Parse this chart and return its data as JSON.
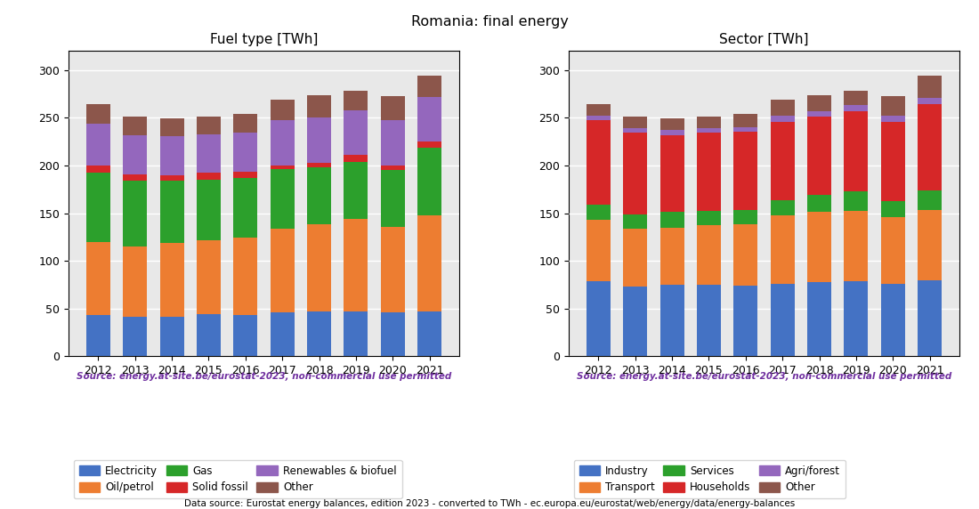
{
  "years": [
    2012,
    2013,
    2014,
    2015,
    2016,
    2017,
    2018,
    2019,
    2020,
    2021
  ],
  "title": "Romania: final energy",
  "source_text": "Source: energy.at-site.be/eurostat-2023, non-commercial use permitted",
  "footer_text": "Data source: Eurostat energy balances, edition 2023 - converted to TWh - ec.europa.eu/eurostat/web/energy/data/energy-balances",
  "fuel_title": "Fuel type [TWh]",
  "fuel_data": {
    "Electricity": [
      43,
      41,
      41,
      44,
      43,
      46,
      47,
      47,
      46,
      47
    ],
    "Oil/petrol": [
      77,
      74,
      78,
      78,
      81,
      88,
      91,
      97,
      90,
      101
    ],
    "Gas": [
      72,
      69,
      65,
      63,
      63,
      62,
      60,
      60,
      59,
      71
    ],
    "Solid fossil": [
      8,
      7,
      6,
      7,
      6,
      4,
      5,
      7,
      5,
      6
    ],
    "Renewables & biofuel": [
      44,
      41,
      41,
      41,
      41,
      47,
      47,
      47,
      47,
      47
    ],
    "Other": [
      20,
      19,
      18,
      18,
      20,
      22,
      24,
      20,
      26,
      22
    ]
  },
  "fuel_colors": {
    "Electricity": "#4472C4",
    "Oil/petrol": "#ED7D31",
    "Gas": "#2CA02C",
    "Solid fossil": "#D62728",
    "Renewables & biofuel": "#9467BD",
    "Other": "#8C564B"
  },
  "fuel_order": [
    "Electricity",
    "Oil/petrol",
    "Gas",
    "Solid fossil",
    "Renewables & biofuel",
    "Other"
  ],
  "sector_title": "Sector [TWh]",
  "sector_data": {
    "Industry": [
      79,
      73,
      75,
      75,
      74,
      76,
      78,
      79,
      76,
      80
    ],
    "Transport": [
      64,
      61,
      60,
      62,
      64,
      72,
      73,
      73,
      70,
      73
    ],
    "Services": [
      16,
      15,
      16,
      15,
      15,
      16,
      18,
      21,
      17,
      21
    ],
    "Households": [
      88,
      85,
      81,
      82,
      82,
      82,
      82,
      84,
      83,
      90
    ],
    "Agri/forest": [
      5,
      5,
      5,
      5,
      5,
      6,
      6,
      6,
      6,
      7
    ],
    "Other": [
      12,
      12,
      12,
      12,
      14,
      17,
      17,
      15,
      21,
      23
    ]
  },
  "sector_colors": {
    "Industry": "#4472C4",
    "Transport": "#ED7D31",
    "Services": "#2CA02C",
    "Households": "#D62728",
    "Agri/forest": "#9467BD",
    "Other": "#8C564B"
  },
  "sector_order": [
    "Industry",
    "Transport",
    "Services",
    "Households",
    "Agri/forest",
    "Other"
  ],
  "ylim": [
    0,
    320
  ],
  "yticks": [
    0,
    50,
    100,
    150,
    200,
    250,
    300
  ],
  "source_color": "#7030A0",
  "bar_width": 0.65
}
